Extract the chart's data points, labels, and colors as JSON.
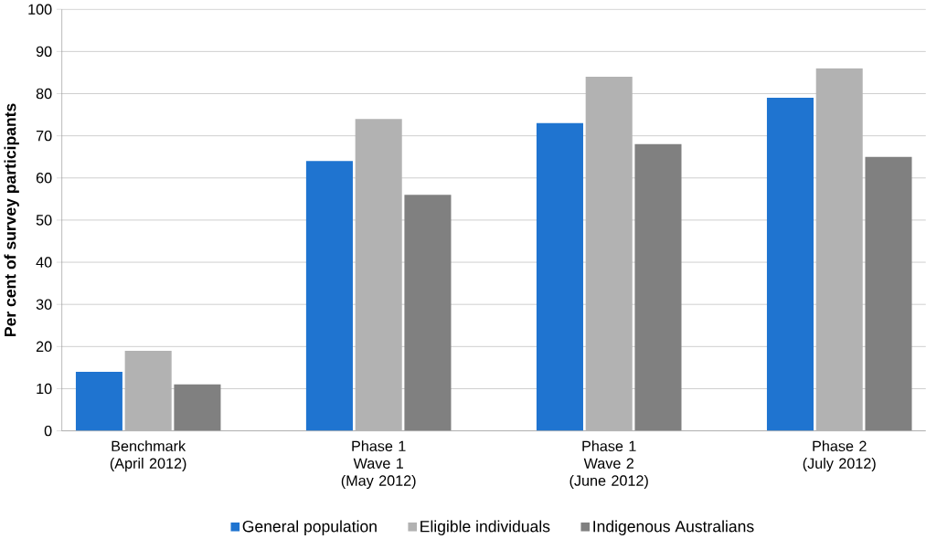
{
  "chart_data": {
    "type": "bar",
    "ylabel": "Per cent of survey participants",
    "categories": [
      "Benchmark\n(April 2012)",
      "Phase 1\nWave 1\n(May 2012)",
      "Phase 1\nWave 2\n(June 2012)",
      "Phase 2\n(July 2012)"
    ],
    "series": [
      {
        "name": "General population",
        "color": "#1f74d0",
        "values": [
          14,
          64,
          73,
          79
        ]
      },
      {
        "name": "Eligible individuals",
        "color": "#b2b2b2",
        "values": [
          19,
          74,
          84,
          86
        ]
      },
      {
        "name": "Indigenous Australians",
        "color": "#808080",
        "values": [
          11,
          56,
          68,
          65
        ]
      }
    ],
    "ylim": [
      0,
      100
    ],
    "yticks": [
      0,
      10,
      20,
      30,
      40,
      50,
      60,
      70,
      80,
      90,
      100
    ],
    "grid": "y",
    "legend": "bottom"
  }
}
